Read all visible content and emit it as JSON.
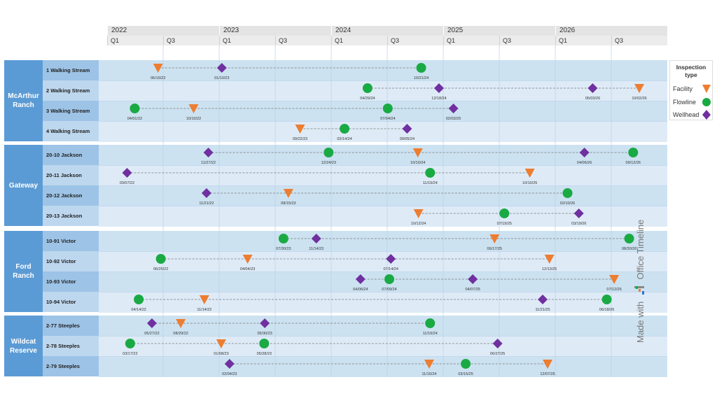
{
  "chart_data": {
    "type": "timeline",
    "x_range": [
      "2022-01-01",
      "2027-01-01"
    ],
    "years": [
      "2022",
      "2023",
      "2024",
      "2025",
      "2026"
    ],
    "quarters": [
      "Q1",
      "Q3"
    ],
    "legend": {
      "title": "Inspection type",
      "placement": "right",
      "items": [
        {
          "type": "Facility",
          "shape": "triangle-down",
          "color": "#ed7d31"
        },
        {
          "type": "Flowline",
          "shape": "circle",
          "color": "#1aaa44"
        },
        {
          "type": "Wellhead",
          "shape": "diamond",
          "color": "#7030a0"
        }
      ]
    },
    "groups": [
      {
        "name": "McArthur Ranch",
        "rows": [
          {
            "name": "1 Walking Stream",
            "events": [
              [
                "Facility",
                "06/16/22"
              ],
              [
                "Wellhead",
                "01/10/23"
              ],
              [
                "Flowline",
                "10/21/24"
              ]
            ]
          },
          {
            "name": "2 Walking Stream",
            "events": [
              [
                "Flowline",
                "04/29/24"
              ],
              [
                "Wellhead",
                "12/18/24"
              ],
              [
                "Wellhead",
                "05/03/26"
              ],
              [
                "Facility",
                "10/02/26"
              ]
            ]
          },
          {
            "name": "3 Walking Stream",
            "events": [
              [
                "Flowline",
                "04/01/22"
              ],
              [
                "Facility",
                "10/10/22"
              ],
              [
                "Flowline",
                "07/04/24"
              ],
              [
                "Wellhead",
                "02/03/25"
              ]
            ]
          },
          {
            "name": "4 Walking Stream",
            "events": [
              [
                "Facility",
                "09/22/23"
              ],
              [
                "Flowline",
                "02/14/24"
              ],
              [
                "Wellhead",
                "09/05/24"
              ]
            ]
          }
        ]
      },
      {
        "name": "Gateway",
        "rows": [
          {
            "name": "20-10 Jackson",
            "events": [
              [
                "Wellhead",
                "11/27/22"
              ],
              [
                "Flowline",
                "12/24/23"
              ],
              [
                "Facility",
                "10/10/24"
              ],
              [
                "Wellhead",
                "04/06/26"
              ],
              [
                "Flowline",
                "09/12/26"
              ]
            ]
          },
          {
            "name": "20-11 Jackson",
            "events": [
              [
                "Wellhead",
                "03/07/22"
              ],
              [
                "Flowline",
                "11/19/24"
              ],
              [
                "Facility",
                "10/10/25"
              ]
            ]
          },
          {
            "name": "20-12 Jackson",
            "events": [
              [
                "Wellhead",
                "11/21/22"
              ],
              [
                "Facility",
                "08/15/23"
              ],
              [
                "Flowline",
                "02/10/26"
              ]
            ]
          },
          {
            "name": "20-13 Jackson",
            "events": [
              [
                "Facility",
                "10/12/24"
              ],
              [
                "Flowline",
                "07/19/25"
              ],
              [
                "Wellhead",
                "03/19/26"
              ]
            ]
          }
        ]
      },
      {
        "name": "Ford Ranch",
        "rows": [
          {
            "name": "10-91 Victor",
            "events": [
              [
                "Flowline",
                "07/30/23"
              ],
              [
                "Wellhead",
                "11/14/23"
              ],
              [
                "Facility",
                "06/17/25"
              ],
              [
                "Flowline",
                "08/30/26"
              ]
            ]
          },
          {
            "name": "10-92 Victor",
            "events": [
              [
                "Flowline",
                "06/25/22"
              ],
              [
                "Facility",
                "04/04/23"
              ],
              [
                "Wellhead",
                "07/14/24"
              ],
              [
                "Facility",
                "12/13/25"
              ]
            ]
          },
          {
            "name": "10-93 Victor",
            "events": [
              [
                "Wellhead",
                "04/06/24"
              ],
              [
                "Flowline",
                "07/09/24"
              ],
              [
                "Wellhead",
                "04/07/25"
              ],
              [
                "Facility",
                "07/12/26"
              ]
            ]
          },
          {
            "name": "10-94 Victor",
            "events": [
              [
                "Flowline",
                "04/14/22"
              ],
              [
                "Facility",
                "11/14/22"
              ],
              [
                "Wellhead",
                "11/21/25"
              ],
              [
                "Flowline",
                "06/18/26"
              ]
            ]
          }
        ]
      },
      {
        "name": "Wildcat Reserve",
        "rows": [
          {
            "name": "2-77 Steeples",
            "events": [
              [
                "Wellhead",
                "05/27/22"
              ],
              [
                "Facility",
                "08/29/22"
              ],
              [
                "Wellhead",
                "05/30/23"
              ],
              [
                "Flowline",
                "11/19/24"
              ]
            ]
          },
          {
            "name": "2-78 Steeples",
            "events": [
              [
                "Flowline",
                "03/17/22"
              ],
              [
                "Facility",
                "01/08/23"
              ],
              [
                "Flowline",
                "05/28/23"
              ],
              [
                "Wellhead",
                "06/27/25"
              ]
            ]
          },
          {
            "name": "2-79 Steeples",
            "events": [
              [
                "Wellhead",
                "02/04/23"
              ],
              [
                "Facility",
                "11/16/24"
              ],
              [
                "Flowline",
                "03/15/25"
              ],
              [
                "Facility",
                "12/07/25"
              ]
            ]
          }
        ]
      }
    ]
  },
  "watermark": {
    "prefix": "Made with",
    "brand": "Office Timeline"
  }
}
